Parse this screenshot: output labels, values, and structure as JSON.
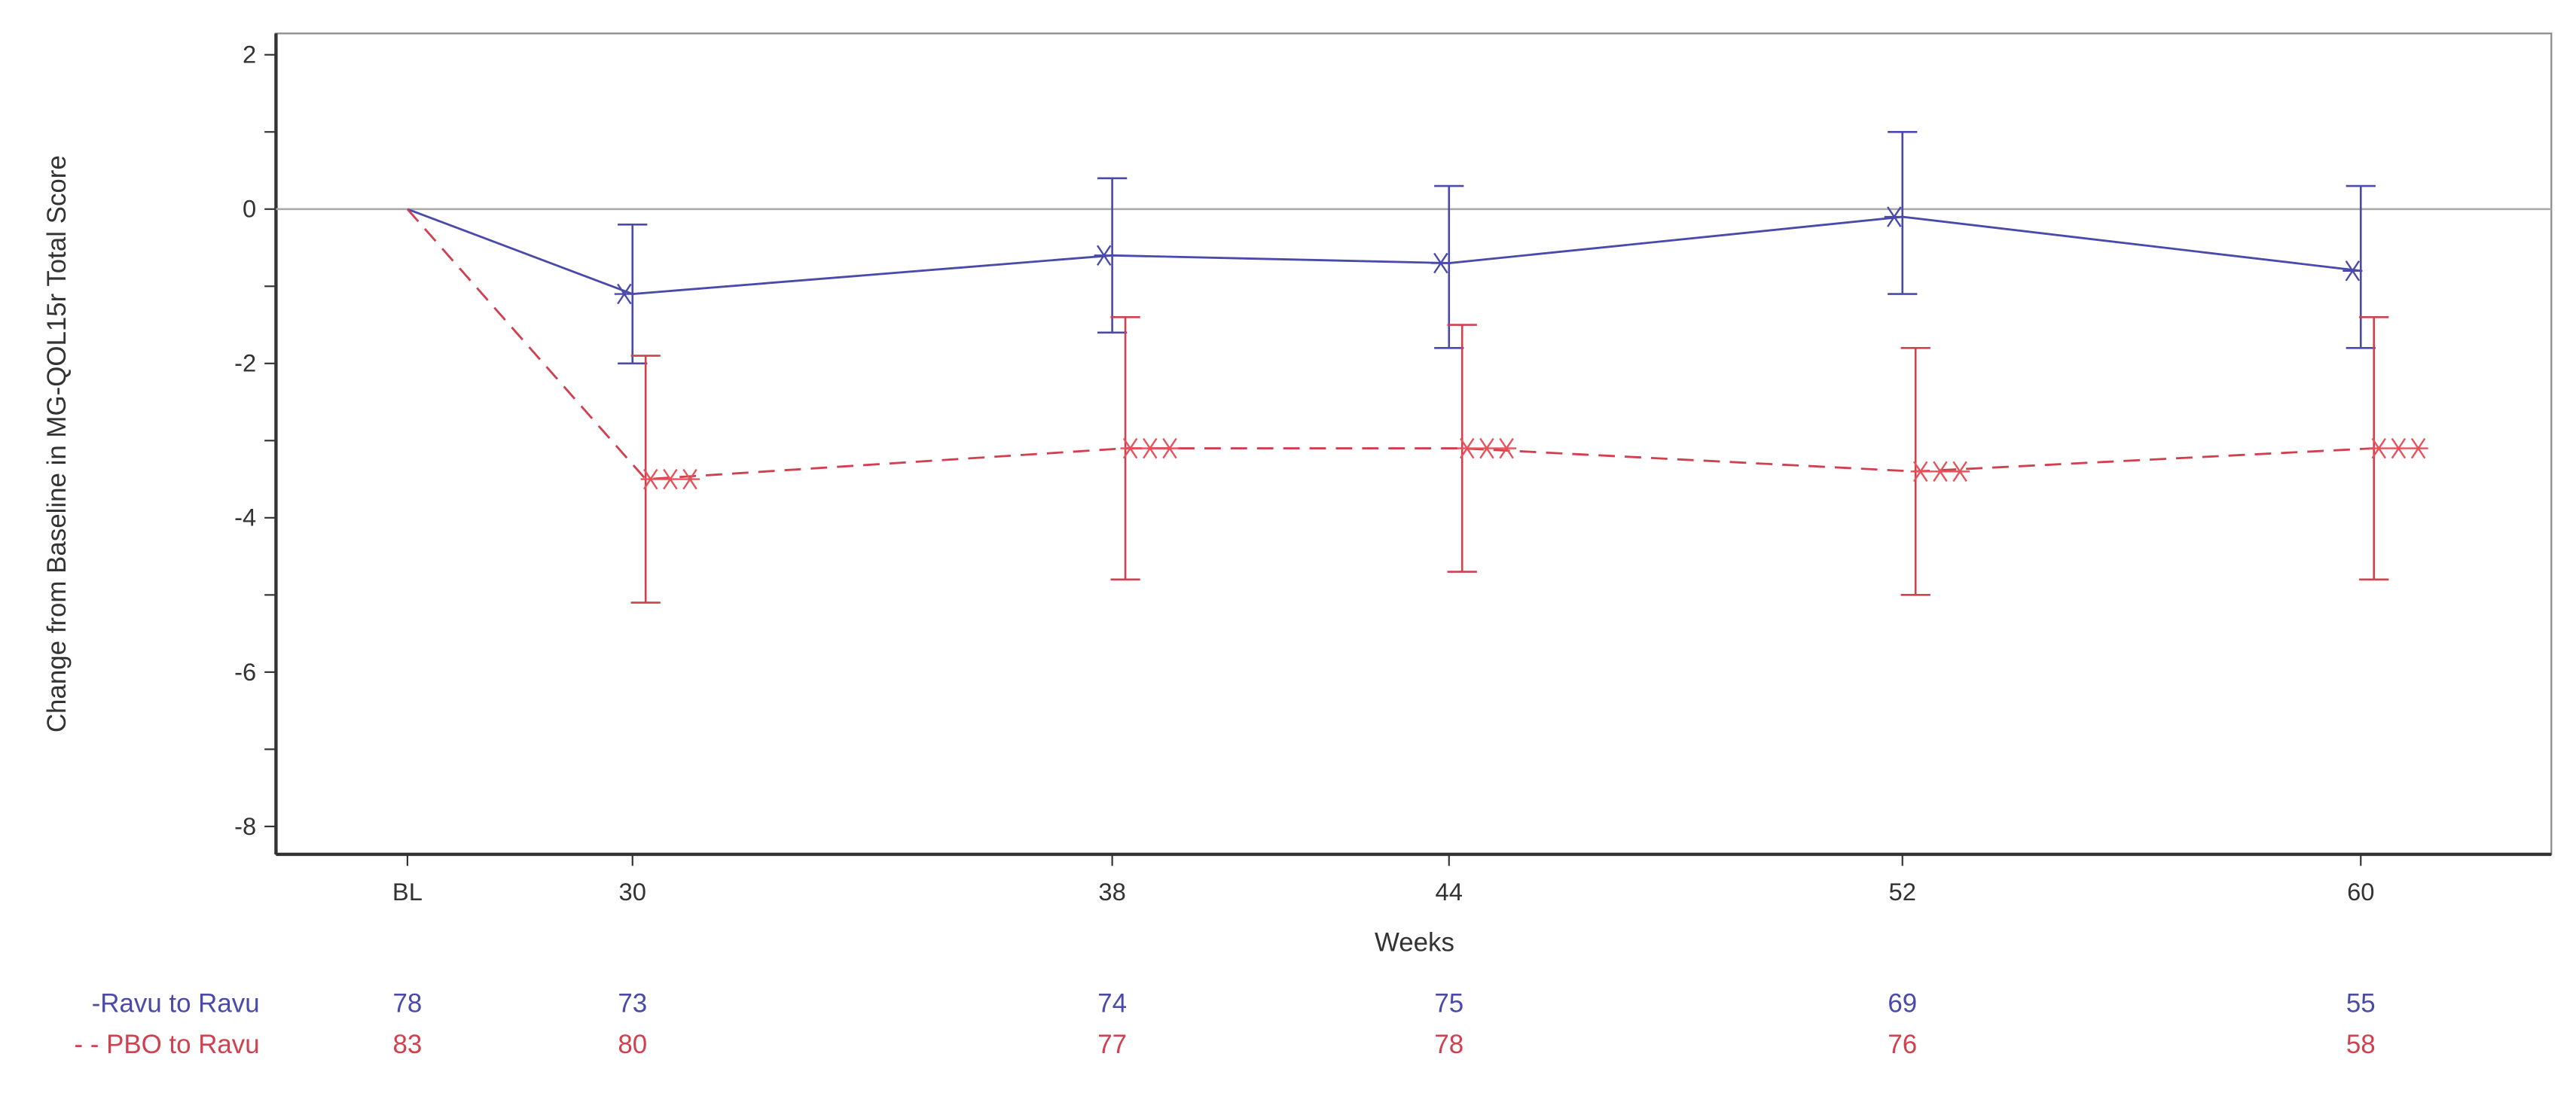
{
  "chart_data": {
    "type": "line",
    "xlabel": "Weeks",
    "ylabel": "Change from Baseline in MG-QOL15r Total Score",
    "categories": [
      "BL",
      "30",
      "38",
      "44",
      "52",
      "60"
    ],
    "ylim": [
      -8.4,
      2.3
    ],
    "yticks": [
      "2",
      "0",
      "-2",
      "-4",
      "-6",
      "-8"
    ],
    "reference_line_y": 0,
    "grid": false,
    "series": [
      {
        "name": "Ravu to Ravu",
        "legend_label": "-Ravu to Ravu",
        "color": "#4a4aaa",
        "dash": "solid",
        "values": [
          0,
          -1.1,
          -0.6,
          -0.7,
          -0.1,
          -0.8
        ],
        "lower": [
          null,
          -2.0,
          -1.6,
          -1.8,
          -1.1,
          -1.8
        ],
        "upper": [
          null,
          -0.2,
          0.4,
          0.3,
          1.0,
          0.3
        ],
        "n_at_risk": [
          "78",
          "73",
          "74",
          "75",
          "69",
          "55"
        ]
      },
      {
        "name": "PBO to Ravu",
        "legend_label": "- - PBO to Ravu",
        "color": "#d0404e",
        "dash": "dashed",
        "values": [
          0,
          -3.5,
          -3.1,
          -3.1,
          -3.4,
          -3.1
        ],
        "lower": [
          null,
          -5.1,
          -4.8,
          -4.7,
          -5.0,
          -4.8
        ],
        "upper": [
          null,
          -1.9,
          -1.4,
          -1.5,
          -1.8,
          -1.4
        ],
        "n_at_risk": [
          "83",
          "80",
          "77",
          "78",
          "76",
          "58"
        ]
      }
    ]
  }
}
